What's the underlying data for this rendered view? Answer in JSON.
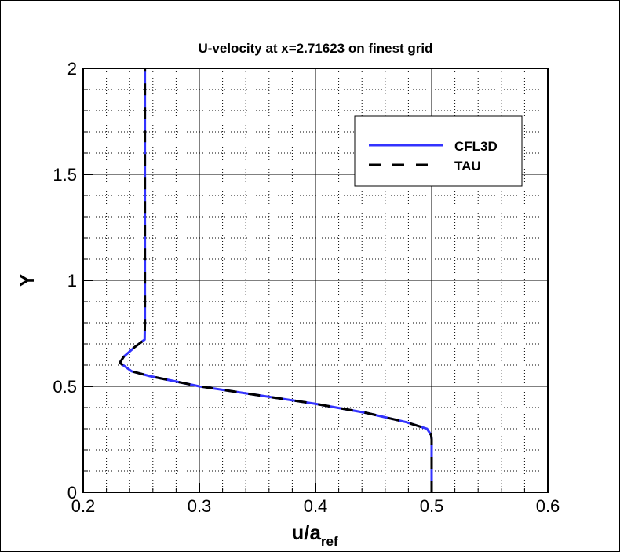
{
  "chart_data": {
    "type": "line",
    "title": "U-velocity at x=2.71623 on finest grid",
    "xlabel": "u/a",
    "xlabel_subscript": "ref",
    "ylabel": "Y",
    "xlim": [
      0.2,
      0.6
    ],
    "ylim": [
      0,
      2
    ],
    "x_ticks": [
      "0.2",
      "0.3",
      "0.4",
      "0.5",
      "0.6"
    ],
    "y_ticks": [
      "0",
      "0.5",
      "1",
      "1.5",
      "2"
    ],
    "grid": {
      "major": true,
      "minor": true
    },
    "legend_position": "top-right",
    "series": [
      {
        "name": "CFL3D",
        "color": "#3333ff",
        "style": "solid",
        "x": [
          0.5,
          0.5,
          0.4996,
          0.496,
          0.478,
          0.4444,
          0.3993,
          0.3,
          0.2574,
          0.2417,
          0.2315,
          0.2349,
          0.2439,
          0.2529,
          0.2531,
          0.2531
        ],
        "y": [
          0,
          0.25,
          0.27,
          0.3,
          0.331,
          0.374,
          0.418,
          0.5,
          0.548,
          0.571,
          0.611,
          0.64,
          0.683,
          0.72,
          0.8,
          2
        ]
      },
      {
        "name": "TAU",
        "color": "#000000",
        "style": "dashed",
        "x": [
          0.5,
          0.5,
          0.4996,
          0.496,
          0.478,
          0.4444,
          0.3993,
          0.3,
          0.2574,
          0.2417,
          0.2315,
          0.2349,
          0.2439,
          0.2529,
          0.2531,
          0.2531
        ],
        "y": [
          0,
          0.25,
          0.27,
          0.3,
          0.331,
          0.374,
          0.418,
          0.5,
          0.548,
          0.571,
          0.611,
          0.64,
          0.683,
          0.72,
          0.8,
          2
        ]
      }
    ]
  }
}
